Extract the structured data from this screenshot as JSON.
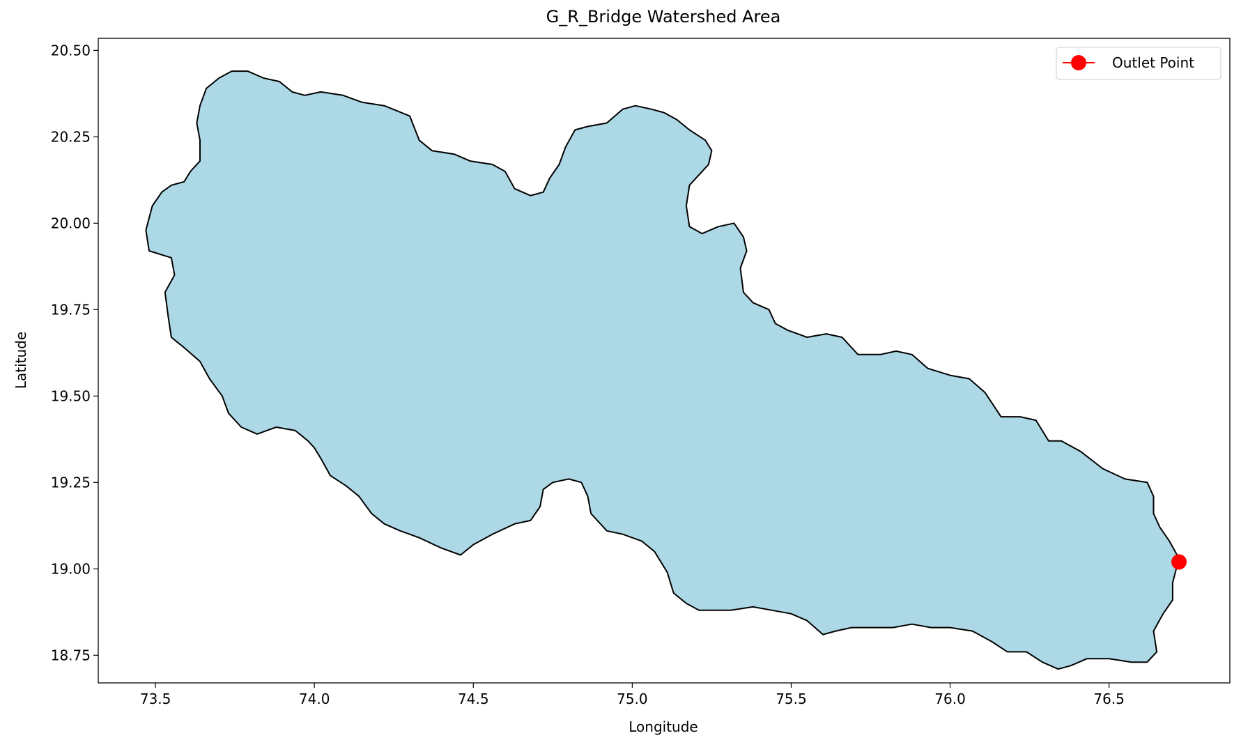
{
  "chart_data": {
    "type": "map",
    "title": "G_R_Bridge Watershed Area",
    "xlabel": "Longitude",
    "ylabel": "Latitude",
    "xlim": [
      73.32,
      76.88
    ],
    "ylim": [
      18.67,
      20.535
    ],
    "xticks": [
      73.5,
      74.0,
      74.5,
      75.0,
      75.5,
      76.0,
      76.5
    ],
    "xtick_labels": [
      "73.5",
      "74.0",
      "74.5",
      "75.0",
      "75.5",
      "76.0",
      "76.5"
    ],
    "yticks": [
      18.75,
      19.0,
      19.25,
      19.5,
      19.75,
      20.0,
      20.25,
      20.5
    ],
    "ytick_labels": [
      "18.75",
      "19.00",
      "19.25",
      "19.50",
      "19.75",
      "20.00",
      "20.25",
      "20.50"
    ],
    "grid": false,
    "legend": {
      "position": "top-right",
      "entries": [
        {
          "label": "Outlet Point",
          "color": "#ff0000",
          "marker": "circle-line"
        }
      ]
    },
    "watershed": {
      "fill": "#add8e6",
      "edge": "#000000",
      "boundary": [
        [
          73.48,
          19.92
        ],
        [
          73.47,
          19.98
        ],
        [
          73.49,
          20.05
        ],
        [
          73.52,
          20.09
        ],
        [
          73.55,
          20.11
        ],
        [
          73.59,
          20.12
        ],
        [
          73.61,
          20.15
        ],
        [
          73.64,
          20.18
        ],
        [
          73.64,
          20.24
        ],
        [
          73.63,
          20.29
        ],
        [
          73.64,
          20.34
        ],
        [
          73.66,
          20.39
        ],
        [
          73.7,
          20.42
        ],
        [
          73.74,
          20.44
        ],
        [
          73.79,
          20.44
        ],
        [
          73.84,
          20.42
        ],
        [
          73.89,
          20.41
        ],
        [
          73.93,
          20.38
        ],
        [
          73.97,
          20.37
        ],
        [
          74.02,
          20.38
        ],
        [
          74.09,
          20.37
        ],
        [
          74.15,
          20.35
        ],
        [
          74.22,
          20.34
        ],
        [
          74.3,
          20.31
        ],
        [
          74.33,
          20.24
        ],
        [
          74.37,
          20.21
        ],
        [
          74.44,
          20.2
        ],
        [
          74.49,
          20.18
        ],
        [
          74.56,
          20.17
        ],
        [
          74.6,
          20.15
        ],
        [
          74.63,
          20.1
        ],
        [
          74.68,
          20.08
        ],
        [
          74.72,
          20.09
        ],
        [
          74.74,
          20.13
        ],
        [
          74.77,
          20.17
        ],
        [
          74.79,
          20.22
        ],
        [
          74.82,
          20.27
        ],
        [
          74.86,
          20.28
        ],
        [
          74.92,
          20.29
        ],
        [
          74.97,
          20.33
        ],
        [
          75.01,
          20.34
        ],
        [
          75.06,
          20.33
        ],
        [
          75.1,
          20.32
        ],
        [
          75.14,
          20.3
        ],
        [
          75.18,
          20.27
        ],
        [
          75.23,
          20.24
        ],
        [
          75.25,
          20.21
        ],
        [
          75.24,
          20.17
        ],
        [
          75.21,
          20.14
        ],
        [
          75.18,
          20.11
        ],
        [
          75.17,
          20.05
        ],
        [
          75.18,
          19.99
        ],
        [
          75.22,
          19.97
        ],
        [
          75.27,
          19.99
        ],
        [
          75.32,
          20.0
        ],
        [
          75.35,
          19.96
        ],
        [
          75.36,
          19.92
        ],
        [
          75.34,
          19.87
        ],
        [
          75.35,
          19.8
        ],
        [
          75.38,
          19.77
        ],
        [
          75.43,
          19.75
        ],
        [
          75.45,
          19.71
        ],
        [
          75.49,
          19.69
        ],
        [
          75.55,
          19.67
        ],
        [
          75.61,
          19.68
        ],
        [
          75.66,
          19.67
        ],
        [
          75.71,
          19.62
        ],
        [
          75.78,
          19.62
        ],
        [
          75.83,
          19.63
        ],
        [
          75.88,
          19.62
        ],
        [
          75.93,
          19.58
        ],
        [
          76.0,
          19.56
        ],
        [
          76.06,
          19.55
        ],
        [
          76.11,
          19.51
        ],
        [
          76.16,
          19.44
        ],
        [
          76.22,
          19.44
        ],
        [
          76.27,
          19.43
        ],
        [
          76.31,
          19.37
        ],
        [
          76.35,
          19.37
        ],
        [
          76.41,
          19.34
        ],
        [
          76.48,
          19.29
        ],
        [
          76.55,
          19.26
        ],
        [
          76.62,
          19.25
        ],
        [
          76.64,
          19.21
        ],
        [
          76.64,
          19.16
        ],
        [
          76.66,
          19.12
        ],
        [
          76.69,
          19.08
        ],
        [
          76.72,
          19.03
        ],
        [
          76.7,
          18.96
        ],
        [
          76.7,
          18.91
        ],
        [
          76.67,
          18.87
        ],
        [
          76.64,
          18.82
        ],
        [
          76.65,
          18.76
        ],
        [
          76.62,
          18.73
        ],
        [
          76.57,
          18.73
        ],
        [
          76.5,
          18.74
        ],
        [
          76.43,
          18.74
        ],
        [
          76.38,
          18.72
        ],
        [
          76.34,
          18.71
        ],
        [
          76.29,
          18.73
        ],
        [
          76.24,
          18.76
        ],
        [
          76.18,
          18.76
        ],
        [
          76.13,
          18.79
        ],
        [
          76.07,
          18.82
        ],
        [
          76.0,
          18.83
        ],
        [
          75.94,
          18.83
        ],
        [
          75.88,
          18.84
        ],
        [
          75.82,
          18.83
        ],
        [
          75.75,
          18.83
        ],
        [
          75.69,
          18.83
        ],
        [
          75.64,
          18.82
        ],
        [
          75.6,
          18.81
        ],
        [
          75.55,
          18.85
        ],
        [
          75.5,
          18.87
        ],
        [
          75.44,
          18.88
        ],
        [
          75.38,
          18.89
        ],
        [
          75.31,
          18.88
        ],
        [
          75.26,
          18.88
        ],
        [
          75.21,
          18.88
        ],
        [
          75.17,
          18.9
        ],
        [
          75.13,
          18.93
        ],
        [
          75.11,
          18.99
        ],
        [
          75.07,
          19.05
        ],
        [
          75.03,
          19.08
        ],
        [
          74.97,
          19.1
        ],
        [
          74.92,
          19.11
        ],
        [
          74.87,
          19.16
        ],
        [
          74.86,
          19.21
        ],
        [
          74.84,
          19.25
        ],
        [
          74.8,
          19.26
        ],
        [
          74.75,
          19.25
        ],
        [
          74.72,
          19.23
        ],
        [
          74.71,
          19.18
        ],
        [
          74.68,
          19.14
        ],
        [
          74.63,
          19.13
        ],
        [
          74.56,
          19.1
        ],
        [
          74.5,
          19.07
        ],
        [
          74.46,
          19.04
        ],
        [
          74.4,
          19.06
        ],
        [
          74.33,
          19.09
        ],
        [
          74.27,
          19.11
        ],
        [
          74.22,
          19.13
        ],
        [
          74.18,
          19.16
        ],
        [
          74.14,
          19.21
        ],
        [
          74.1,
          19.24
        ],
        [
          74.05,
          19.27
        ],
        [
          74.02,
          19.32
        ],
        [
          74.0,
          19.35
        ],
        [
          73.98,
          19.37
        ],
        [
          73.94,
          19.4
        ],
        [
          73.88,
          19.41
        ],
        [
          73.82,
          19.39
        ],
        [
          73.77,
          19.41
        ],
        [
          73.73,
          19.45
        ],
        [
          73.71,
          19.5
        ],
        [
          73.67,
          19.55
        ],
        [
          73.64,
          19.6
        ],
        [
          73.59,
          19.64
        ],
        [
          73.55,
          19.67
        ],
        [
          73.54,
          19.73
        ],
        [
          73.53,
          19.8
        ],
        [
          73.56,
          19.85
        ],
        [
          73.55,
          19.9
        ]
      ]
    },
    "points": [
      {
        "name": "Outlet Point",
        "lon": 76.72,
        "lat": 19.02,
        "color": "#ff0000"
      }
    ]
  }
}
